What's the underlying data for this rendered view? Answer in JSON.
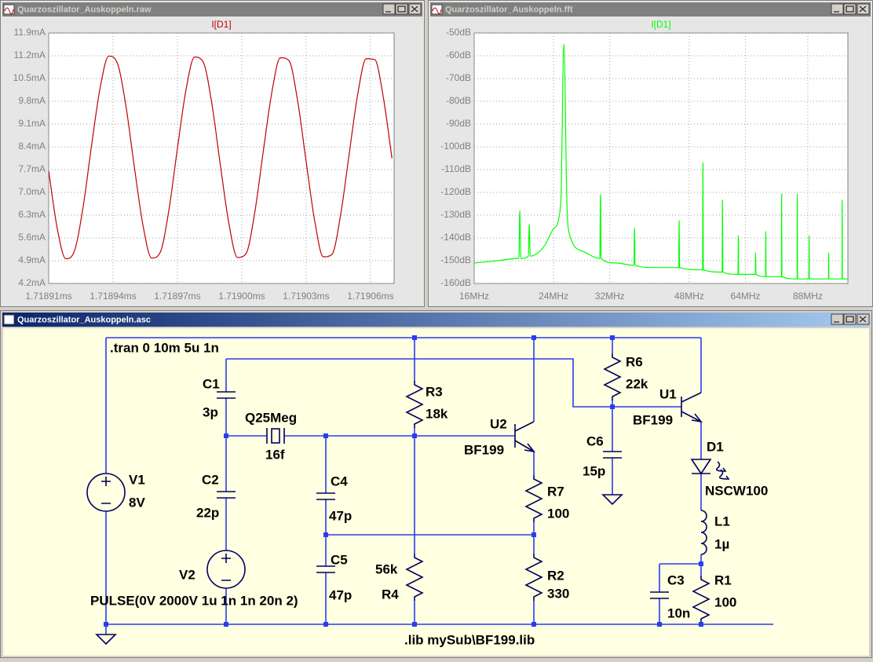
{
  "windows": [
    {
      "title": "Quarzoszillator_Auskoppeln.raw"
    },
    {
      "title": "Quarzoszillator_Auskoppeln.fft"
    },
    {
      "title": "Quarzoszillator_Auskoppeln.asc"
    }
  ],
  "chart_data": [
    {
      "type": "line",
      "x": [
        1.71891,
        1.718914,
        1.718918,
        1.718922,
        1.718926,
        1.71893,
        1.718934,
        1.718938,
        1.718942,
        1.718946,
        1.71895,
        1.718954,
        1.718958,
        1.718962,
        1.718966,
        1.71897,
        1.718974,
        1.718978,
        1.718982,
        1.718986,
        1.71899,
        1.718994,
        1.718998,
        1.719002,
        1.719006,
        1.71901,
        1.719014,
        1.719018,
        1.719022,
        1.719026,
        1.71903,
        1.719034,
        1.719038,
        1.719042,
        1.719046,
        1.71905,
        1.719054,
        1.719058,
        1.719062,
        1.719066,
        1.71907
      ],
      "series": [
        {
          "name": "I[D1]",
          "color": "#c00000",
          "values": [
            7.66,
            5.89,
            4.96,
            5.2,
            6.53,
            8.45,
            10.22,
            11.19,
            10.97,
            9.66,
            7.75,
            5.97,
            4.98,
            5.16,
            6.44,
            8.35,
            10.15,
            11.16,
            11.01,
            9.75,
            7.85,
            6.04,
            5.0,
            5.12,
            6.36,
            8.25,
            10.07,
            11.14,
            11.05,
            9.83,
            7.95,
            6.12,
            5.02,
            5.09,
            6.28,
            8.15,
            10.0,
            11.11,
            11.08,
            9.91,
            8.05
          ]
        }
      ],
      "xlim": [
        1.71891,
        1.719071
      ],
      "ylim": [
        4.2,
        11.9
      ],
      "xticks": [
        {
          "value": 1.71891,
          "label": "1.71891ms"
        },
        {
          "value": 1.71894,
          "label": "1.71894ms"
        },
        {
          "value": 1.71897,
          "label": "1.71897ms"
        },
        {
          "value": 1.719,
          "label": "1.71900ms"
        },
        {
          "value": 1.71903,
          "label": "1.71903ms"
        },
        {
          "value": 1.71906,
          "label": "1.71906ms"
        }
      ],
      "yticks": [
        {
          "value": 4.2,
          "label": "4.2mA"
        },
        {
          "value": 4.9,
          "label": "4.9mA"
        },
        {
          "value": 5.6,
          "label": "5.6mA"
        },
        {
          "value": 6.3,
          "label": "6.3mA"
        },
        {
          "value": 7.0,
          "label": "7.0mA"
        },
        {
          "value": 7.7,
          "label": "7.7mA"
        },
        {
          "value": 8.4,
          "label": "8.4mA"
        },
        {
          "value": 9.1,
          "label": "9.1mA"
        },
        {
          "value": 9.8,
          "label": "9.8mA"
        },
        {
          "value": 10.5,
          "label": "10.5mA"
        },
        {
          "value": 11.2,
          "label": "11.2mA"
        },
        {
          "value": 11.9,
          "label": "11.9mA"
        }
      ],
      "grid": true
    },
    {
      "type": "line",
      "xlog": true,
      "x": [
        16,
        18,
        20,
        20.1,
        20.2,
        20.3,
        21.1,
        21.2,
        21.3,
        22,
        23,
        24,
        24.9,
        25.3,
        25.7,
        26,
        28,
        30.4,
        30.5,
        30.6,
        33,
        36.2,
        36.3,
        36.4,
        40,
        45.5,
        45.6,
        45.7,
        51.4,
        51.5,
        51.6,
        56.8,
        56.9,
        57,
        61.6,
        61.7,
        61.8,
        67.3,
        67.4,
        67.5,
        70.9,
        71,
        71.1,
        76.9,
        77,
        77.1,
        83.3,
        83.4,
        83.5,
        88.5,
        88.6,
        88.7,
        97.8,
        97.9,
        98,
        104.8,
        104.9,
        105,
        108
      ],
      "series": [
        {
          "name": "I[D1]",
          "color": "#00ff00",
          "values": [
            -151,
            -150,
            -149,
            -149,
            -128,
            -149,
            -148,
            -134,
            -148,
            -147,
            -143,
            -136,
            -125,
            -55,
            -125,
            -138,
            -146,
            -149,
            -121,
            -149,
            -151,
            -152,
            -135.5,
            -152,
            -153,
            -153,
            -132.4,
            -153,
            -154,
            -107,
            -154,
            -155,
            -123.4,
            -155,
            -156,
            -139,
            -156,
            -156,
            -146.5,
            -156,
            -157,
            -137.2,
            -157,
            -157,
            -120.7,
            -157,
            -158,
            -120.7,
            -158,
            -158,
            -139,
            -158,
            -158,
            -146.5,
            -158,
            -158,
            -123.4,
            -158,
            -158
          ]
        }
      ],
      "xlim": [
        16,
        108
      ],
      "ylim": [
        -160,
        -50
      ],
      "xticks": [
        {
          "value": 16,
          "label": "16MHz"
        },
        {
          "value": 24,
          "label": "24MHz"
        },
        {
          "value": 32,
          "label": "32MHz"
        },
        {
          "value": 48,
          "label": "48MHz"
        },
        {
          "value": 64,
          "label": "64MHz"
        },
        {
          "value": 88,
          "label": "88MHz"
        }
      ],
      "yticks": [
        {
          "value": -160,
          "label": "-160dB"
        },
        {
          "value": -150,
          "label": "-150dB"
        },
        {
          "value": -140,
          "label": "-140dB"
        },
        {
          "value": -130,
          "label": "-130dB"
        },
        {
          "value": -120,
          "label": "-120dB"
        },
        {
          "value": -110,
          "label": "-110dB"
        },
        {
          "value": -100,
          "label": "-100dB"
        },
        {
          "value": -90,
          "label": "-90dB"
        },
        {
          "value": -80,
          "label": "-80dB"
        },
        {
          "value": -70,
          "label": "-70dB"
        },
        {
          "value": -60,
          "label": "-60dB"
        },
        {
          "value": -50,
          "label": "-50dB"
        }
      ],
      "grid": true
    }
  ],
  "schematic": {
    "directive": ".tran 0 10m 5u 1n",
    "library": ".lib mySub\\BF199.lib",
    "components": [
      {
        "name": "V1",
        "value": "8V"
      },
      {
        "name": "V2",
        "value": "PULSE(0V 2000V 1u 1n 1n 20n 2)"
      },
      {
        "name": "C1",
        "value": "3p"
      },
      {
        "name": "Q25Meg",
        "value": "16f"
      },
      {
        "name": "C2",
        "value": "22p"
      },
      {
        "name": "C4",
        "value": "47p"
      },
      {
        "name": "C5",
        "value": "47p"
      },
      {
        "name": "R3",
        "value": "18k"
      },
      {
        "name": "R4",
        "value": "56k"
      },
      {
        "name": "U2",
        "value": "BF199"
      },
      {
        "name": "R7",
        "value": "100"
      },
      {
        "name": "R2",
        "value": "330"
      },
      {
        "name": "R6",
        "value": "22k"
      },
      {
        "name": "C6",
        "value": "15p"
      },
      {
        "name": "U1",
        "value": "BF199"
      },
      {
        "name": "D1",
        "value": "NSCW100"
      },
      {
        "name": "L1",
        "value": "1µ"
      },
      {
        "name": "C3",
        "value": "10n"
      },
      {
        "name": "R1",
        "value": "100"
      }
    ]
  }
}
